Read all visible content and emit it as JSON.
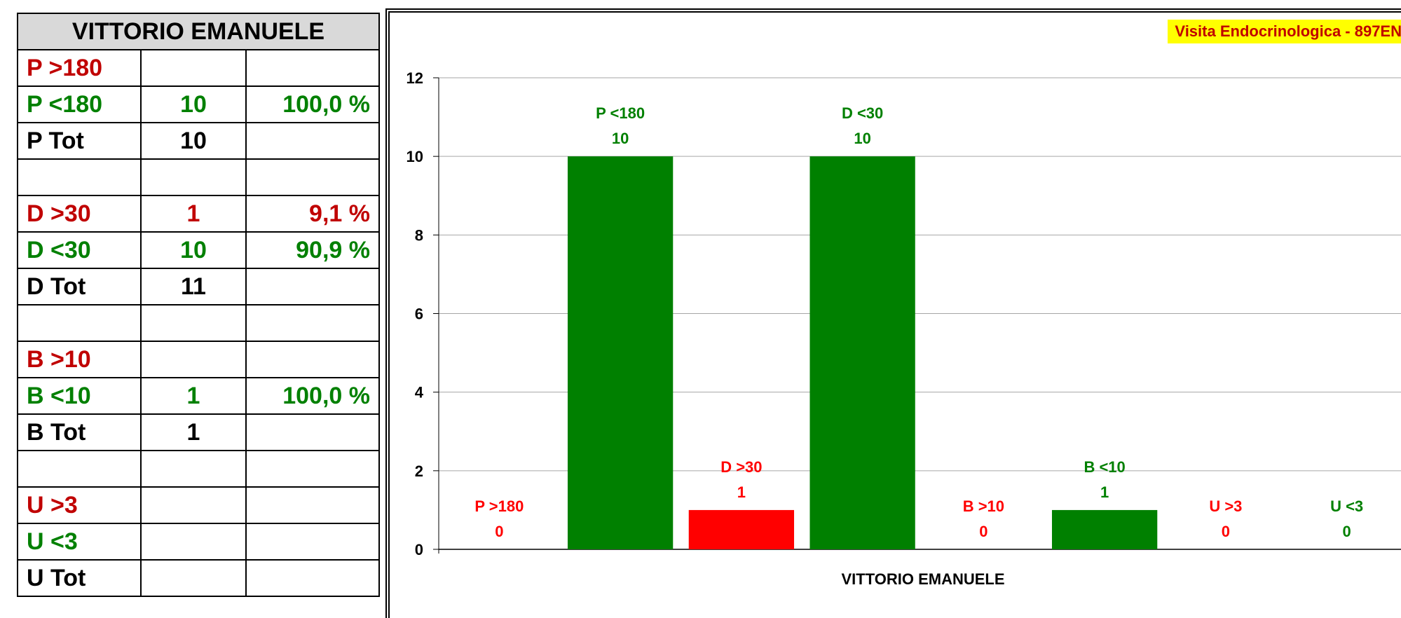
{
  "table": {
    "title": "VITTORIO EMANUELE",
    "rows": [
      {
        "label": "P  >180",
        "count": "",
        "pct": "",
        "color": "red"
      },
      {
        "label": "P  <180",
        "count": "10",
        "pct": "100,0 %",
        "color": "green"
      },
      {
        "label": "P  Tot",
        "count": "10",
        "pct": "",
        "color": "black"
      },
      {
        "label": "",
        "count": "",
        "pct": "",
        "color": "black"
      },
      {
        "label": "D  >30",
        "count": "1",
        "pct": "9,1 %",
        "color": "red"
      },
      {
        "label": "D  <30",
        "count": "10",
        "pct": "90,9 %",
        "color": "green"
      },
      {
        "label": "D  Tot",
        "count": "11",
        "pct": "",
        "color": "black"
      },
      {
        "label": "",
        "count": "",
        "pct": "",
        "color": "black"
      },
      {
        "label": "B  >10",
        "count": "",
        "pct": "",
        "color": "red"
      },
      {
        "label": "B  <10",
        "count": "1",
        "pct": "100,0 %",
        "color": "green"
      },
      {
        "label": "B  Tot",
        "count": "1",
        "pct": "",
        "color": "black"
      },
      {
        "label": "",
        "count": "",
        "pct": "",
        "color": "black"
      },
      {
        "label": "U  >3",
        "count": "",
        "pct": "",
        "color": "red"
      },
      {
        "label": "U  <3",
        "count": "",
        "pct": "",
        "color": "green"
      },
      {
        "label": "U  Tot",
        "count": "",
        "pct": "",
        "color": "black"
      }
    ]
  },
  "chart_data": {
    "type": "bar",
    "title": "Visita Endocrinologica - 897EN",
    "xlabel": "VITTORIO EMANUELE",
    "ylabel": "",
    "ylim": [
      0,
      12
    ],
    "yticks": [
      0,
      2,
      4,
      6,
      8,
      10,
      12
    ],
    "grid": true,
    "categories": [
      "P >180",
      "P <180",
      "D >30",
      "D <30",
      "B >10",
      "B <10",
      "U >3",
      "U <3"
    ],
    "values": [
      0,
      10,
      1,
      10,
      0,
      1,
      0,
      0
    ],
    "bar_colors": [
      "#ff0000",
      "#008000",
      "#ff0000",
      "#008000",
      "#ff0000",
      "#008000",
      "#ff0000",
      "#008000"
    ],
    "label_colors": [
      "#ff0000",
      "#008000",
      "#ff0000",
      "#008000",
      "#ff0000",
      "#008000",
      "#ff0000",
      "#008000"
    ]
  }
}
